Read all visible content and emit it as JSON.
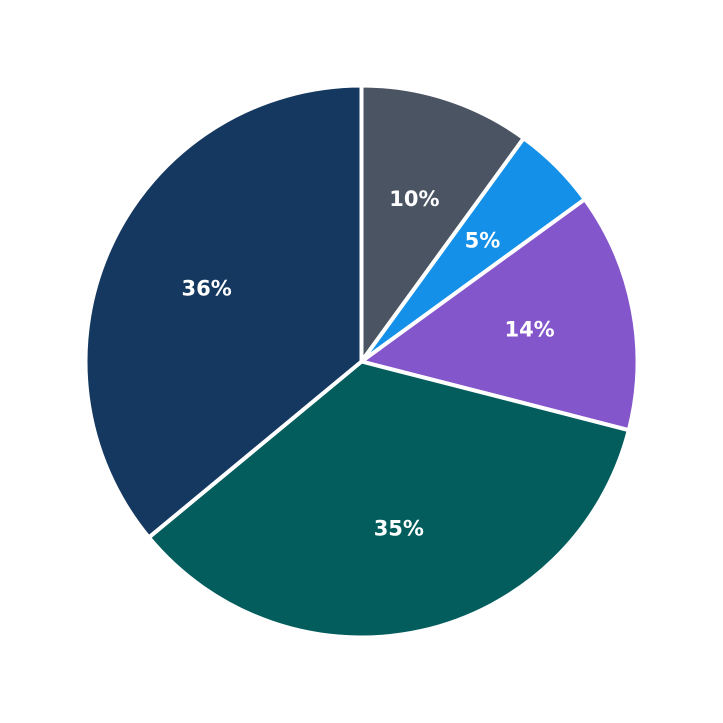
{
  "chart_data": {
    "type": "pie",
    "start_angle": "12 o'clock",
    "direction": "clockwise",
    "legend": "none",
    "slices": [
      {
        "value": 10,
        "label": "10%",
        "color": "#4a5462"
      },
      {
        "value": 5,
        "label": "5%",
        "color": "#1490e8"
      },
      {
        "value": 14,
        "label": "14%",
        "color": "#8456cc"
      },
      {
        "value": 35,
        "label": "35%",
        "color": "#025d5c"
      },
      {
        "value": 36,
        "label": "36%",
        "color": "#153861"
      }
    ]
  }
}
